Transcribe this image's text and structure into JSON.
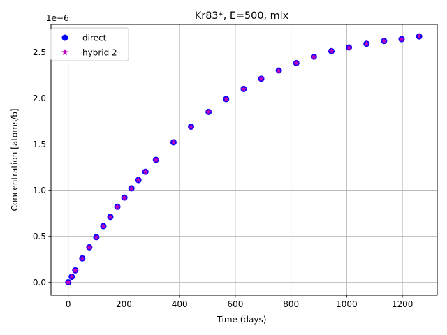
{
  "chart_data": {
    "type": "scatter",
    "title": "Kr83*, E=500, mix",
    "xlabel": "Time (days)",
    "ylabel": "Concentration [atoms/b]",
    "y_offset_label": "1e−6",
    "xlim": [
      -62,
      1325
    ],
    "ylim": [
      -0.14,
      2.8
    ],
    "xticks": [
      0,
      200,
      400,
      600,
      800,
      1000,
      1200
    ],
    "xtick_labels": [
      "0",
      "200",
      "400",
      "600",
      "800",
      "1000",
      "1200"
    ],
    "yticks": [
      0.0,
      0.5,
      1.0,
      1.5,
      2.0,
      2.5
    ],
    "ytick_labels": [
      "0.0",
      "0.5",
      "1.0",
      "1.5",
      "2.0",
      "2.5"
    ],
    "grid": true,
    "legend_position": "top-left",
    "x": [
      0,
      12.6,
      25.2,
      50.4,
      75.6,
      100.8,
      126,
      151.2,
      176.4,
      201.6,
      226.8,
      252,
      277.2,
      315,
      378,
      441,
      504,
      567,
      630,
      693,
      756,
      819,
      882,
      945,
      1008,
      1071,
      1134,
      1197,
      1260
    ],
    "series": [
      {
        "name": "direct",
        "marker": "circle",
        "color": "#0000ff",
        "values": [
          0.0,
          0.06,
          0.13,
          0.26,
          0.38,
          0.49,
          0.61,
          0.71,
          0.82,
          0.92,
          1.02,
          1.11,
          1.2,
          1.33,
          1.52,
          1.69,
          1.85,
          1.99,
          2.1,
          2.21,
          2.3,
          2.38,
          2.45,
          2.51,
          2.55,
          2.59,
          2.62,
          2.64,
          2.67
        ]
      },
      {
        "name": "hybrid 2",
        "marker": "star",
        "color": "#bf00bf",
        "values": [
          0.0,
          0.06,
          0.13,
          0.26,
          0.38,
          0.49,
          0.61,
          0.71,
          0.82,
          0.92,
          1.02,
          1.11,
          1.2,
          1.33,
          1.52,
          1.69,
          1.85,
          1.99,
          2.1,
          2.21,
          2.3,
          2.38,
          2.45,
          2.51,
          2.55,
          2.59,
          2.62,
          2.64,
          2.67
        ]
      }
    ]
  }
}
